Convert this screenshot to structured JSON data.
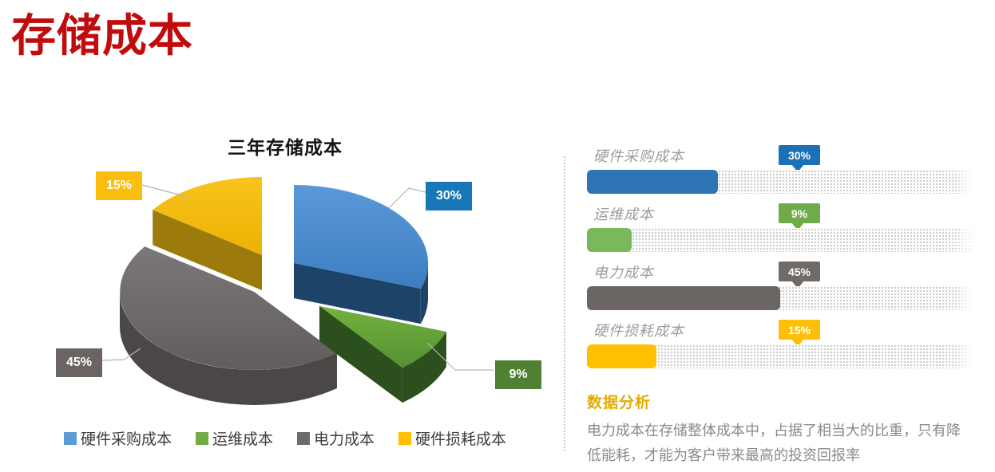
{
  "slide": {
    "title": "存储成本",
    "title_color": "#C00C0C"
  },
  "pie": {
    "title": "三年存储成本",
    "slices": [
      {
        "label": "硬件采购成本",
        "value": 30,
        "pct": "30%",
        "top": "#5A99D8",
        "top2": "#3D7EC1",
        "side": "#1D4369",
        "box": "#1877B6",
        "legend_color": "#5B9BD5"
      },
      {
        "label": "运维成本",
        "value": 9,
        "pct": "9%",
        "top": "#74B23F",
        "top2": "#539134",
        "side": "#2C501D",
        "box": "#4F8033",
        "legend_color": "#70AD47"
      },
      {
        "label": "电力成本",
        "value": 45,
        "pct": "45%",
        "top": "#7C7878",
        "top2": "#615D5D",
        "side": "#4B4747",
        "box": "#6A6563",
        "legend_color": "#6B6B6B"
      },
      {
        "label": "硬件损耗成本",
        "value": 15,
        "pct": "15%",
        "top": "#F9C41C",
        "top2": "#ECB103",
        "side": "#9C7B0C",
        "box": "#F9BE0E",
        "legend_color": "#FFC000"
      }
    ]
  },
  "bars": {
    "rows": [
      {
        "label": "硬件采购成本",
        "pct": "30%",
        "value": 30,
        "fill": "#2E74B5",
        "badge": "#1C70B5"
      },
      {
        "label": "运维成本",
        "pct": "9%",
        "value": 9,
        "fill": "#7BB75C",
        "badge": "#6FAC49"
      },
      {
        "label": "电力成本",
        "pct": "45%",
        "value": 45,
        "fill": "#6B6664",
        "badge": "#706B69"
      },
      {
        "label": "硬件损耗成本",
        "pct": "15%",
        "value": 15,
        "fill": "#FFC003",
        "badge": "#FEBF0B"
      }
    ]
  },
  "analysis": {
    "heading": "数据分析",
    "body": "电力成本在存储整体成本中，占据了相当大的比重，只有降低能耗，才能为客户带来最高的投资回报率"
  },
  "chart_data": [
    {
      "type": "pie",
      "style": "3d-exploded",
      "title": "三年存储成本",
      "labels": [
        "硬件采购成本",
        "运维成本",
        "电力成本",
        "硬件损耗成本"
      ],
      "values": [
        30,
        9,
        45,
        15
      ],
      "unit": "%",
      "data_labels": [
        "30%",
        "9%",
        "45%",
        "15%"
      ],
      "colors": [
        "#5B9BD5",
        "#70AD47",
        "#6B6B6B",
        "#FFC000"
      ],
      "legend_position": "bottom",
      "start_angle_deg": 0,
      "direction": "clockwise"
    },
    {
      "type": "bar",
      "orientation": "horizontal",
      "categories": [
        "硬件采购成本",
        "运维成本",
        "电力成本",
        "硬件损耗成本"
      ],
      "values": [
        30,
        9,
        45,
        15
      ],
      "unit": "%",
      "value_labels": [
        "30%",
        "9%",
        "45%",
        "15%"
      ],
      "colors": [
        "#2E74B5",
        "#7BB75C",
        "#6B6664",
        "#FFC003"
      ],
      "xlim": [
        0,
        100
      ],
      "grid": false
    }
  ]
}
